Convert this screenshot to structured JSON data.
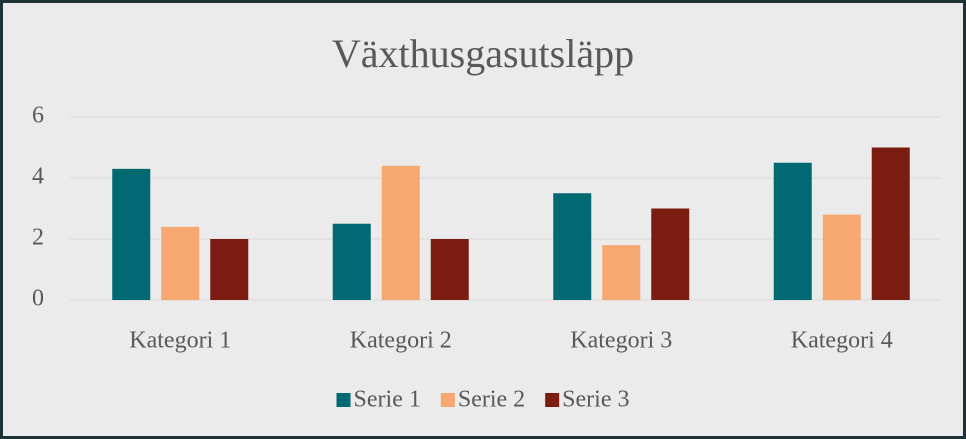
{
  "chart_data": {
    "type": "bar",
    "title": "Växthusgasutsläpp",
    "categories": [
      "Kategori 1",
      "Kategori 2",
      "Kategori 3",
      "Kategori 4"
    ],
    "series": [
      {
        "name": "Serie 1",
        "color": "#006972",
        "values": [
          4.3,
          2.5,
          3.5,
          4.5
        ]
      },
      {
        "name": "Serie 2",
        "color": "#f7a870",
        "values": [
          2.4,
          4.4,
          1.8,
          2.8
        ]
      },
      {
        "name": "Serie 3",
        "color": "#7b1c12",
        "values": [
          2,
          2,
          3,
          5
        ]
      }
    ],
    "ylim": [
      0,
      6
    ],
    "yticks": [
      0,
      2,
      4,
      6
    ],
    "grid": true,
    "legend": "bottom"
  }
}
